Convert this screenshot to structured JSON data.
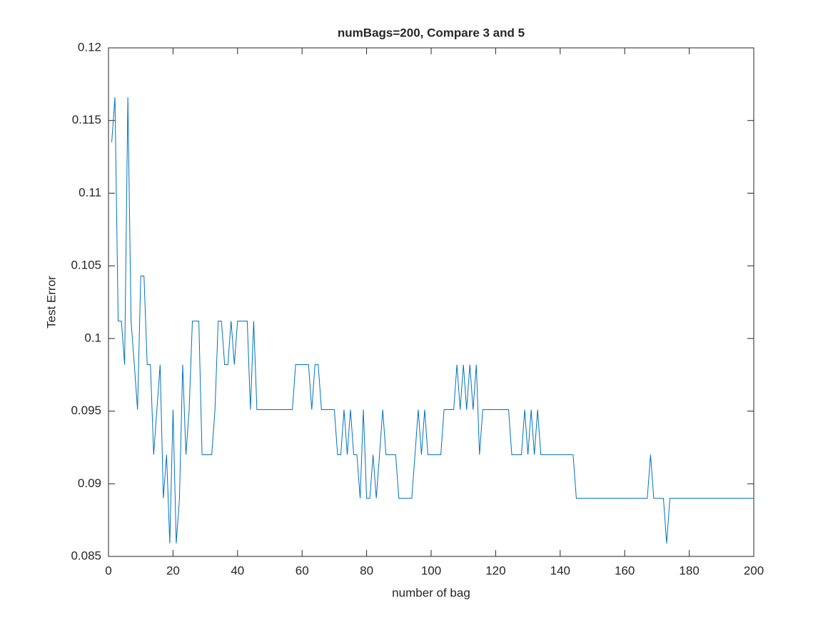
{
  "chart_data": {
    "type": "line",
    "title": "numBags=200, Compare 3 and 5",
    "xlabel": "number of bag",
    "ylabel": "Test Error",
    "xlim": [
      0,
      200
    ],
    "xticks": [
      0,
      20,
      40,
      60,
      80,
      100,
      120,
      140,
      160,
      180,
      200
    ],
    "ylim": [
      0.085,
      0.12
    ],
    "yticks": [
      0.085,
      0.09,
      0.095,
      0.1,
      0.105,
      0.11,
      0.115,
      0.12
    ],
    "grid": false,
    "series": [
      {
        "color": "#0072bd",
        "x": [
          1,
          2,
          3,
          4,
          5,
          6,
          7,
          8,
          9,
          10,
          11,
          12,
          13,
          14,
          15,
          16,
          17,
          18,
          19,
          20,
          21,
          22,
          23,
          24,
          25,
          26,
          27,
          28,
          29,
          30,
          31,
          32,
          33,
          34,
          35,
          36,
          37,
          38,
          39,
          40,
          41,
          42,
          43,
          44,
          45,
          46,
          47,
          48,
          49,
          50,
          51,
          52,
          53,
          54,
          55,
          56,
          57,
          58,
          59,
          60,
          61,
          62,
          63,
          64,
          65,
          66,
          67,
          68,
          69,
          70,
          71,
          72,
          73,
          74,
          75,
          76,
          77,
          78,
          79,
          80,
          81,
          82,
          83,
          84,
          85,
          86,
          87,
          88,
          89,
          90,
          91,
          92,
          93,
          94,
          95,
          96,
          97,
          98,
          99,
          100,
          101,
          102,
          103,
          104,
          105,
          106,
          107,
          108,
          109,
          110,
          111,
          112,
          113,
          114,
          115,
          116,
          117,
          118,
          119,
          120,
          121,
          122,
          123,
          124,
          125,
          126,
          127,
          128,
          129,
          130,
          131,
          132,
          133,
          134,
          135,
          136,
          137,
          138,
          139,
          140,
          141,
          142,
          143,
          144,
          145,
          146,
          147,
          148,
          149,
          150,
          151,
          152,
          153,
          154,
          155,
          156,
          157,
          158,
          159,
          160,
          161,
          162,
          163,
          164,
          165,
          166,
          167,
          168,
          169,
          170,
          171,
          172,
          173,
          174,
          175,
          176,
          177,
          178,
          179,
          180,
          181,
          182,
          183,
          184,
          185,
          186,
          187,
          188,
          189,
          190,
          191,
          192,
          193,
          194,
          195,
          196,
          197,
          198,
          199,
          200
        ],
        "values": [
          0.1135,
          0.1166,
          0.1012,
          0.1012,
          0.0982,
          0.1166,
          0.1012,
          0.0982,
          0.0951,
          0.1043,
          0.1043,
          0.0982,
          0.0982,
          0.092,
          0.0951,
          0.0982,
          0.089,
          0.092,
          0.0859,
          0.0951,
          0.0859,
          0.089,
          0.0982,
          0.092,
          0.0951,
          0.1012,
          0.1012,
          0.1012,
          0.092,
          0.092,
          0.092,
          0.092,
          0.0951,
          0.1012,
          0.1012,
          0.0982,
          0.0982,
          0.1012,
          0.0982,
          0.1012,
          0.1012,
          0.1012,
          0.1012,
          0.0951,
          0.1012,
          0.0951,
          0.0951,
          0.0951,
          0.0951,
          0.0951,
          0.0951,
          0.0951,
          0.0951,
          0.0951,
          0.0951,
          0.0951,
          0.0951,
          0.0982,
          0.0982,
          0.0982,
          0.0982,
          0.0982,
          0.0951,
          0.0982,
          0.0982,
          0.0951,
          0.0951,
          0.0951,
          0.0951,
          0.0951,
          0.092,
          0.092,
          0.0951,
          0.092,
          0.0951,
          0.092,
          0.092,
          0.089,
          0.0951,
          0.089,
          0.089,
          0.092,
          0.089,
          0.092,
          0.0951,
          0.092,
          0.092,
          0.092,
          0.092,
          0.089,
          0.089,
          0.089,
          0.089,
          0.089,
          0.092,
          0.0951,
          0.092,
          0.0951,
          0.092,
          0.092,
          0.092,
          0.092,
          0.092,
          0.0951,
          0.0951,
          0.0951,
          0.0951,
          0.0982,
          0.0951,
          0.0982,
          0.0951,
          0.0982,
          0.0951,
          0.0982,
          0.092,
          0.0951,
          0.0951,
          0.0951,
          0.0951,
          0.0951,
          0.0951,
          0.0951,
          0.0951,
          0.0951,
          0.092,
          0.092,
          0.092,
          0.092,
          0.0951,
          0.092,
          0.0951,
          0.092,
          0.0951,
          0.092,
          0.092,
          0.092,
          0.092,
          0.092,
          0.092,
          0.092,
          0.092,
          0.092,
          0.092,
          0.092,
          0.089,
          0.089,
          0.089,
          0.089,
          0.089,
          0.089,
          0.089,
          0.089,
          0.089,
          0.089,
          0.089,
          0.089,
          0.089,
          0.089,
          0.089,
          0.089,
          0.089,
          0.089,
          0.089,
          0.089,
          0.089,
          0.089,
          0.089,
          0.092,
          0.089,
          0.089,
          0.089,
          0.089,
          0.0859,
          0.089,
          0.089,
          0.089,
          0.089,
          0.089,
          0.089,
          0.089,
          0.089,
          0.089,
          0.089,
          0.089,
          0.089,
          0.089,
          0.089,
          0.089,
          0.089,
          0.089,
          0.089,
          0.089,
          0.089,
          0.089,
          0.089,
          0.089,
          0.089,
          0.089,
          0.089,
          0.089
        ]
      }
    ]
  }
}
